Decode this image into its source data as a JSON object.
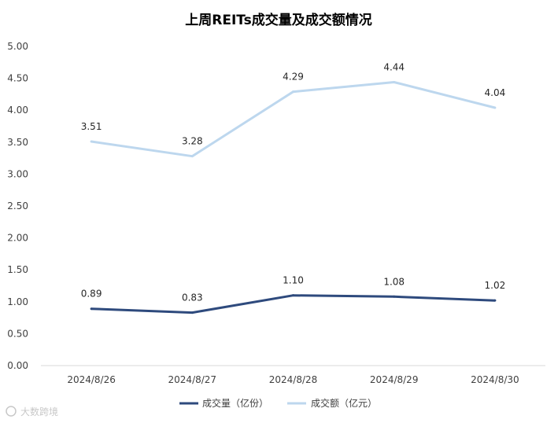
{
  "chart_data": {
    "type": "line",
    "title": "上周REITs成交量及成交额情况",
    "categories": [
      "2024/8/26",
      "2024/8/27",
      "2024/8/28",
      "2024/8/29",
      "2024/8/30"
    ],
    "series": [
      {
        "name": "成交量（亿份）",
        "values": [
          0.89,
          0.83,
          1.1,
          1.08,
          1.02
        ],
        "color": "#2e4a7d",
        "labels": [
          "0.89",
          "0.83",
          "1.10",
          "1.08",
          "1.02"
        ]
      },
      {
        "name": "成交额（亿元）",
        "values": [
          3.51,
          3.28,
          4.29,
          4.44,
          4.04
        ],
        "color": "#bdd7ee",
        "labels": [
          "3.51",
          "3.28",
          "4.29",
          "4.44",
          "4.04"
        ]
      }
    ],
    "yticks": [
      "0.00",
      "0.50",
      "1.00",
      "1.50",
      "2.00",
      "2.50",
      "3.00",
      "3.50",
      "4.00",
      "4.50",
      "5.00"
    ],
    "ylim": [
      0,
      5
    ],
    "grid": false,
    "legend_position": "bottom"
  },
  "watermark": {
    "text": "大数跨境"
  }
}
